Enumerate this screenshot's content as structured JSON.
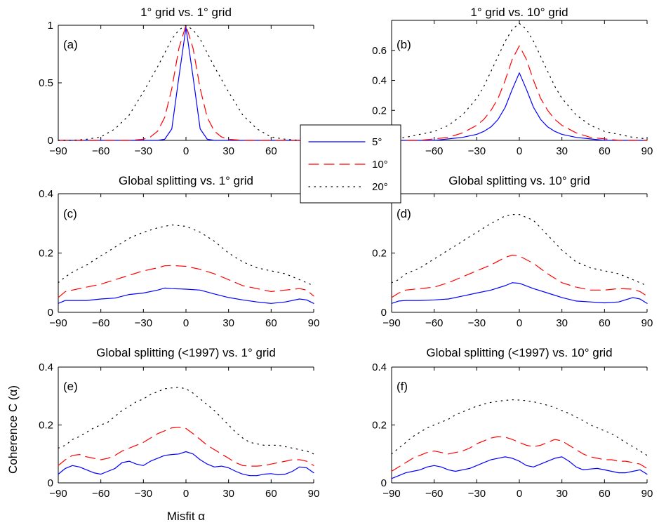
{
  "styles": {
    "5": {
      "color": "#0000ff",
      "dash": ""
    },
    "10": {
      "color": "#ff0000",
      "dash": "14,8"
    },
    "20": {
      "color": "#000000",
      "dash": "1.5,6.5"
    }
  },
  "legend": {
    "entries": [
      {
        "label": "5°",
        "style": "5"
      },
      {
        "label": "10°",
        "style": "10"
      },
      {
        "label": "20°",
        "style": "20"
      }
    ]
  },
  "labels": {
    "ylabel": "Coherence C (α)",
    "xlabel": "Misfit α"
  },
  "chart_data": [
    {
      "type": "line",
      "title": "1° grid vs. 1° grid",
      "label": "(a)",
      "xlim": [
        -90,
        90
      ],
      "ylim": [
        0,
        1
      ],
      "xticks": [
        -90,
        -60,
        -30,
        0,
        30,
        60,
        90
      ],
      "yticks": [
        0,
        0.5,
        1
      ],
      "ytick_labels": [
        "0",
        "0.5",
        "1"
      ],
      "x": [
        -90,
        -80,
        -70,
        -60,
        -50,
        -40,
        -30,
        -25,
        -20,
        -15,
        -10,
        -5,
        0,
        5,
        10,
        15,
        20,
        25,
        30,
        40,
        50,
        60,
        70,
        80,
        90
      ],
      "series": [
        {
          "name": "5°",
          "style": "5",
          "values": [
            0,
            0,
            0,
            0,
            0,
            0,
            0,
            0,
            0,
            0.01,
            0.1,
            0.55,
            0.98,
            0.55,
            0.1,
            0.01,
            0,
            0,
            0,
            0,
            0,
            0,
            0,
            0,
            0
          ]
        },
        {
          "name": "10°",
          "style": "10",
          "values": [
            0,
            0,
            0,
            0,
            0,
            0,
            0.01,
            0.03,
            0.08,
            0.2,
            0.45,
            0.8,
            1.0,
            0.8,
            0.45,
            0.2,
            0.08,
            0.03,
            0.01,
            0,
            0,
            0,
            0,
            0,
            0
          ]
        },
        {
          "name": "20°",
          "style": "20",
          "values": [
            0,
            0,
            0.01,
            0.03,
            0.1,
            0.22,
            0.42,
            0.53,
            0.64,
            0.76,
            0.88,
            0.96,
            1.0,
            0.96,
            0.88,
            0.76,
            0.64,
            0.53,
            0.42,
            0.22,
            0.1,
            0.03,
            0.01,
            0,
            0
          ]
        }
      ]
    },
    {
      "type": "line",
      "title": "1° grid vs. 10° grid",
      "label": "(b)",
      "xlim": [
        -90,
        90
      ],
      "ylim": [
        0,
        0.8
      ],
      "xticks": [
        -90,
        -60,
        -30,
        0,
        30,
        60,
        90
      ],
      "yticks": [
        0.2,
        0.4,
        0.6
      ],
      "ytick_labels": [
        "0.2",
        "0.4",
        "0.6"
      ],
      "x": [
        -90,
        -80,
        -70,
        -60,
        -50,
        -40,
        -30,
        -25,
        -20,
        -15,
        -10,
        -5,
        0,
        5,
        10,
        15,
        20,
        25,
        30,
        40,
        50,
        60,
        70,
        80,
        90
      ],
      "series": [
        {
          "name": "5°",
          "style": "5",
          "values": [
            0,
            0,
            0,
            0,
            0.01,
            0.02,
            0.04,
            0.06,
            0.09,
            0.14,
            0.22,
            0.34,
            0.45,
            0.34,
            0.22,
            0.14,
            0.09,
            0.06,
            0.04,
            0.02,
            0.01,
            0,
            0,
            0,
            0
          ]
        },
        {
          "name": "10°",
          "style": "10",
          "values": [
            0,
            0,
            0,
            0.01,
            0.02,
            0.05,
            0.1,
            0.14,
            0.2,
            0.28,
            0.4,
            0.54,
            0.63,
            0.54,
            0.4,
            0.28,
            0.2,
            0.14,
            0.1,
            0.05,
            0.02,
            0.01,
            0,
            0,
            0
          ]
        },
        {
          "name": "20°",
          "style": "20",
          "values": [
            0.01,
            0.02,
            0.04,
            0.06,
            0.1,
            0.17,
            0.28,
            0.36,
            0.46,
            0.56,
            0.66,
            0.74,
            0.78,
            0.74,
            0.66,
            0.56,
            0.46,
            0.36,
            0.28,
            0.17,
            0.1,
            0.06,
            0.04,
            0.02,
            0.01
          ]
        }
      ]
    },
    {
      "type": "line",
      "title": "Global splitting vs. 1° grid",
      "label": "(c)",
      "xlim": [
        -90,
        90
      ],
      "ylim": [
        0,
        0.4
      ],
      "xticks": [
        -90,
        -60,
        -30,
        0,
        30,
        60,
        90
      ],
      "yticks": [
        0,
        0.2,
        0.4
      ],
      "ytick_labels": [
        "0",
        "0.2",
        "0.4"
      ],
      "x": [
        -90,
        -85,
        -80,
        -70,
        -60,
        -50,
        -40,
        -30,
        -20,
        -15,
        -10,
        0,
        10,
        20,
        30,
        40,
        50,
        60,
        70,
        80,
        85,
        90
      ],
      "series": [
        {
          "name": "5°",
          "style": "5",
          "values": [
            0.03,
            0.04,
            0.04,
            0.04,
            0.045,
            0.048,
            0.06,
            0.065,
            0.075,
            0.082,
            0.08,
            0.078,
            0.075,
            0.062,
            0.05,
            0.042,
            0.035,
            0.03,
            0.035,
            0.045,
            0.042,
            0.03
          ]
        },
        {
          "name": "10°",
          "style": "10",
          "values": [
            0.05,
            0.07,
            0.075,
            0.085,
            0.095,
            0.11,
            0.125,
            0.14,
            0.15,
            0.157,
            0.158,
            0.155,
            0.145,
            0.13,
            0.11,
            0.09,
            0.08,
            0.07,
            0.075,
            0.08,
            0.075,
            0.055
          ]
        },
        {
          "name": "20°",
          "style": "20",
          "values": [
            0.1,
            0.12,
            0.135,
            0.16,
            0.19,
            0.22,
            0.25,
            0.27,
            0.285,
            0.29,
            0.295,
            0.29,
            0.27,
            0.24,
            0.2,
            0.17,
            0.15,
            0.14,
            0.13,
            0.11,
            0.1,
            0.09
          ]
        }
      ]
    },
    {
      "type": "line",
      "title": "Global splitting vs. 10° grid",
      "label": "(d)",
      "xlim": [
        -90,
        90
      ],
      "ylim": [
        0,
        0.4
      ],
      "xticks": [
        -90,
        -60,
        -30,
        0,
        30,
        60,
        90
      ],
      "yticks": [
        0,
        0.2
      ],
      "ytick_labels": [
        "0",
        "0.2"
      ],
      "x": [
        -90,
        -85,
        -80,
        -70,
        -60,
        -50,
        -40,
        -30,
        -20,
        -10,
        -5,
        0,
        10,
        20,
        30,
        40,
        50,
        60,
        70,
        80,
        85,
        90
      ],
      "series": [
        {
          "name": "5°",
          "style": "5",
          "values": [
            0.03,
            0.038,
            0.04,
            0.04,
            0.042,
            0.045,
            0.055,
            0.065,
            0.075,
            0.09,
            0.1,
            0.098,
            0.08,
            0.065,
            0.05,
            0.038,
            0.035,
            0.032,
            0.035,
            0.05,
            0.045,
            0.03
          ]
        },
        {
          "name": "10°",
          "style": "10",
          "values": [
            0.05,
            0.065,
            0.075,
            0.08,
            0.085,
            0.1,
            0.12,
            0.14,
            0.16,
            0.185,
            0.193,
            0.19,
            0.165,
            0.13,
            0.1,
            0.085,
            0.075,
            0.075,
            0.08,
            0.078,
            0.07,
            0.055
          ]
        },
        {
          "name": "20°",
          "style": "20",
          "values": [
            0.1,
            0.11,
            0.13,
            0.15,
            0.18,
            0.21,
            0.24,
            0.27,
            0.3,
            0.325,
            0.33,
            0.33,
            0.31,
            0.26,
            0.21,
            0.17,
            0.15,
            0.14,
            0.13,
            0.11,
            0.1,
            0.09
          ]
        }
      ]
    },
    {
      "type": "line",
      "title": "Global splitting (<1997) vs. 1° grid",
      "label": "(e)",
      "xlim": [
        -90,
        90
      ],
      "ylim": [
        0,
        0.4
      ],
      "xticks": [
        -90,
        -60,
        -30,
        0,
        30,
        60,
        90
      ],
      "yticks": [
        0,
        0.2,
        0.4
      ],
      "ytick_labels": [
        "0",
        "0.2",
        "0.4"
      ],
      "x": [
        -90,
        -85,
        -80,
        -75,
        -70,
        -65,
        -60,
        -55,
        -50,
        -45,
        -40,
        -35,
        -30,
        -25,
        -20,
        -15,
        -10,
        -5,
        0,
        5,
        10,
        15,
        20,
        25,
        30,
        35,
        40,
        45,
        50,
        55,
        60,
        65,
        70,
        75,
        80,
        85,
        90
      ],
      "series": [
        {
          "name": "5°",
          "style": "5",
          "values": [
            0.03,
            0.05,
            0.06,
            0.055,
            0.045,
            0.035,
            0.03,
            0.04,
            0.05,
            0.07,
            0.075,
            0.065,
            0.06,
            0.075,
            0.085,
            0.095,
            0.098,
            0.1,
            0.108,
            0.1,
            0.08,
            0.065,
            0.055,
            0.058,
            0.052,
            0.04,
            0.03,
            0.025,
            0.025,
            0.03,
            0.032,
            0.028,
            0.03,
            0.04,
            0.055,
            0.052,
            0.035
          ]
        },
        {
          "name": "10°",
          "style": "10",
          "values": [
            0.06,
            0.08,
            0.095,
            0.098,
            0.09,
            0.085,
            0.08,
            0.085,
            0.095,
            0.11,
            0.12,
            0.13,
            0.14,
            0.155,
            0.17,
            0.18,
            0.19,
            0.192,
            0.188,
            0.17,
            0.15,
            0.13,
            0.115,
            0.1,
            0.085,
            0.07,
            0.06,
            0.058,
            0.058,
            0.06,
            0.065,
            0.07,
            0.075,
            0.08,
            0.08,
            0.075,
            0.06
          ]
        },
        {
          "name": "20°",
          "style": "20",
          "values": [
            0.12,
            0.13,
            0.15,
            0.16,
            0.175,
            0.19,
            0.2,
            0.21,
            0.23,
            0.25,
            0.265,
            0.28,
            0.29,
            0.305,
            0.315,
            0.325,
            0.328,
            0.33,
            0.325,
            0.31,
            0.29,
            0.27,
            0.25,
            0.225,
            0.2,
            0.175,
            0.155,
            0.14,
            0.135,
            0.13,
            0.13,
            0.13,
            0.125,
            0.12,
            0.115,
            0.11,
            0.1
          ]
        }
      ]
    },
    {
      "type": "line",
      "title": "Global splitting (<1997) vs. 10° grid",
      "label": "(f)",
      "xlim": [
        -90,
        90
      ],
      "ylim": [
        0,
        0.4
      ],
      "xticks": [
        -90,
        -60,
        -30,
        0,
        30,
        60,
        90
      ],
      "yticks": [
        0,
        0.2,
        0.4
      ],
      "ytick_labels": [
        "0",
        "0.2",
        "0.4"
      ],
      "x": [
        -90,
        -85,
        -80,
        -75,
        -70,
        -65,
        -60,
        -55,
        -50,
        -45,
        -40,
        -35,
        -30,
        -25,
        -20,
        -15,
        -10,
        -5,
        0,
        5,
        10,
        15,
        20,
        25,
        30,
        35,
        40,
        45,
        50,
        55,
        60,
        65,
        70,
        75,
        80,
        85,
        90
      ],
      "series": [
        {
          "name": "5°",
          "style": "5",
          "values": [
            0.015,
            0.025,
            0.035,
            0.04,
            0.045,
            0.055,
            0.06,
            0.055,
            0.045,
            0.04,
            0.045,
            0.05,
            0.06,
            0.07,
            0.08,
            0.085,
            0.09,
            0.085,
            0.075,
            0.06,
            0.055,
            0.065,
            0.075,
            0.085,
            0.09,
            0.075,
            0.055,
            0.045,
            0.048,
            0.05,
            0.045,
            0.04,
            0.035,
            0.035,
            0.04,
            0.045,
            0.03
          ]
        },
        {
          "name": "10°",
          "style": "10",
          "values": [
            0.04,
            0.055,
            0.07,
            0.085,
            0.095,
            0.105,
            0.11,
            0.105,
            0.1,
            0.105,
            0.11,
            0.12,
            0.135,
            0.145,
            0.155,
            0.16,
            0.158,
            0.15,
            0.14,
            0.13,
            0.125,
            0.13,
            0.14,
            0.15,
            0.145,
            0.13,
            0.115,
            0.1,
            0.09,
            0.085,
            0.08,
            0.08,
            0.075,
            0.075,
            0.07,
            0.065,
            0.05
          ]
        },
        {
          "name": "20°",
          "style": "20",
          "values": [
            0.1,
            0.12,
            0.14,
            0.16,
            0.175,
            0.19,
            0.2,
            0.21,
            0.22,
            0.235,
            0.245,
            0.255,
            0.265,
            0.272,
            0.278,
            0.282,
            0.285,
            0.287,
            0.286,
            0.284,
            0.28,
            0.275,
            0.268,
            0.26,
            0.25,
            0.24,
            0.228,
            0.215,
            0.2,
            0.19,
            0.18,
            0.17,
            0.155,
            0.14,
            0.125,
            0.11,
            0.095
          ]
        }
      ]
    }
  ]
}
